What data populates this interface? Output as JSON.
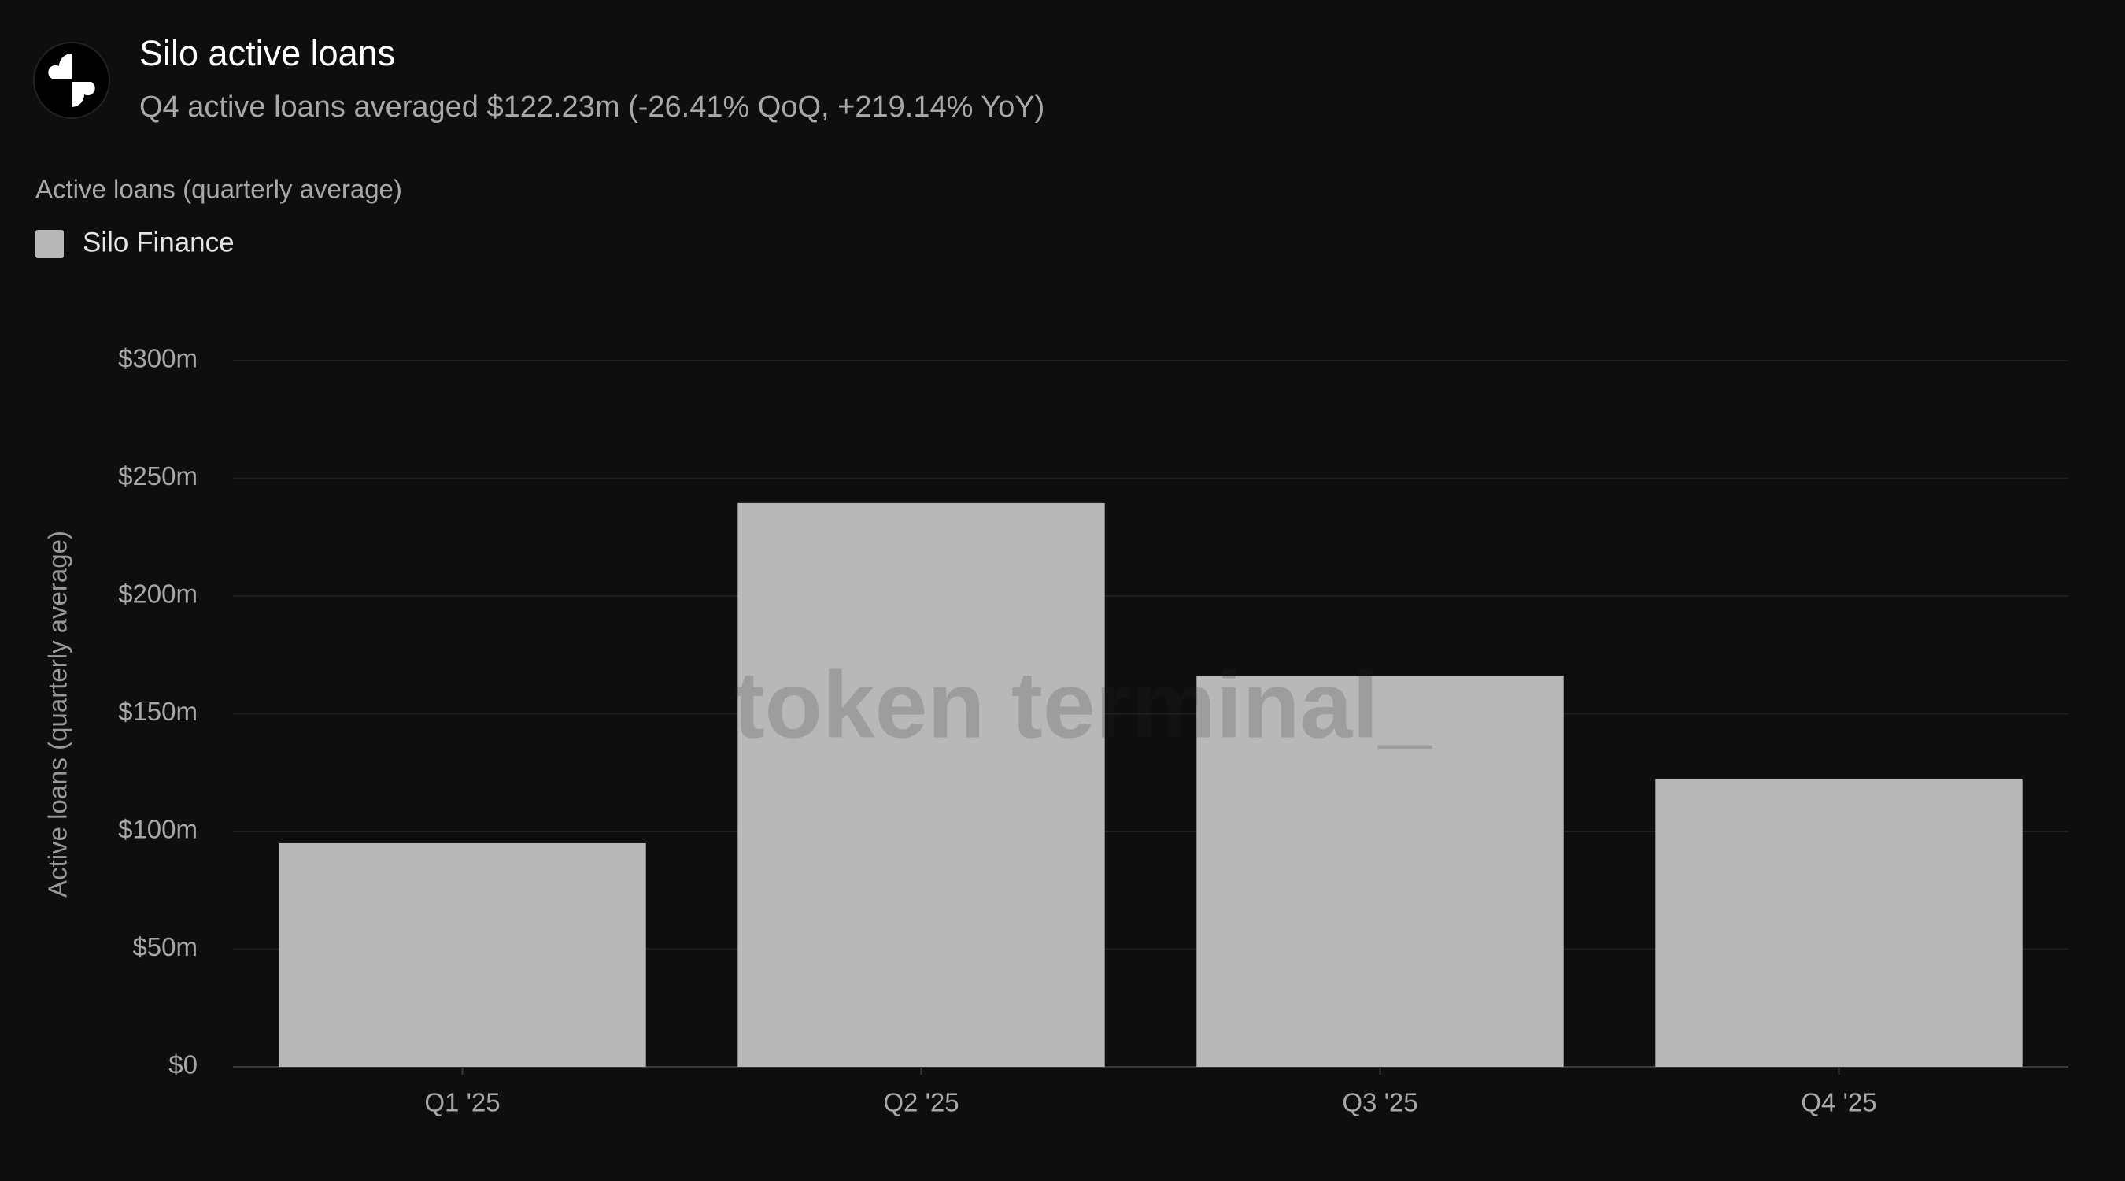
{
  "chart_data": {
    "type": "bar",
    "title": "Silo active loans",
    "subtitle": "Q4 active loans averaged $122.23m (-26.41% QoQ, +219.14% YoY)",
    "section_label": "Active loans (quarterly average)",
    "y_label": "Active loans (quarterly average)",
    "watermark": "token terminal_",
    "categories": [
      "Q1 '25",
      "Q2 '25",
      "Q3 '25",
      "Q4 '25"
    ],
    "series": [
      {
        "name": "Silo Finance",
        "color": "#b8b8b8",
        "values": [
          95,
          239.5,
          166.1,
          122.23
        ]
      }
    ],
    "ylim": [
      0,
      300
    ],
    "yticks": [
      {
        "value": 0,
        "label": "$0"
      },
      {
        "value": 50,
        "label": "$50m"
      },
      {
        "value": 100,
        "label": "$100m"
      },
      {
        "value": 150,
        "label": "$150m"
      },
      {
        "value": 200,
        "label": "$200m"
      },
      {
        "value": 250,
        "label": "$250m"
      },
      {
        "value": 300,
        "label": "$300m"
      }
    ],
    "grid": true
  }
}
